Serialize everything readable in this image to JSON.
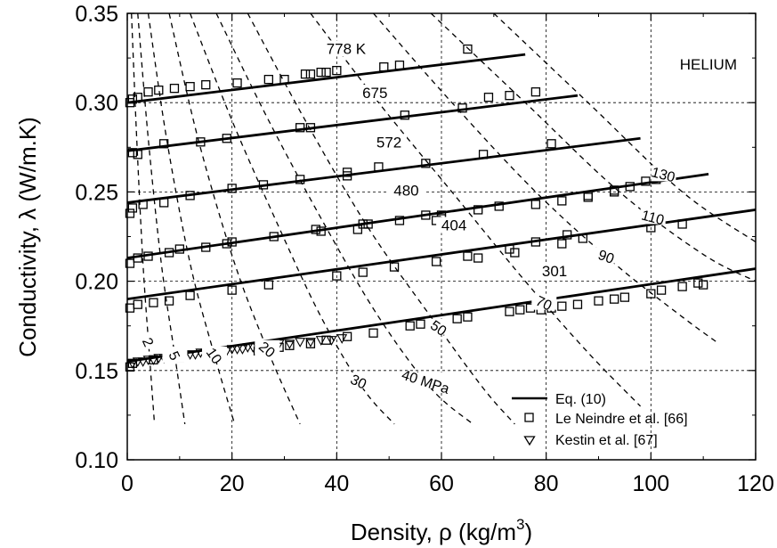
{
  "chart_data": {
    "type": "line",
    "title": "",
    "panel_label": "HELIUM",
    "xlabel": "Density, ρ  (kg/m",
    "xlabel_sup": "3",
    "xlabel_tail": ")",
    "ylabel": "Conductivity, λ  (W/m.K)",
    "xlim": [
      0,
      120
    ],
    "ylim": [
      0.1,
      0.35
    ],
    "xticks": [
      0,
      20,
      40,
      60,
      80,
      100,
      120
    ],
    "xtick_labels": [
      "0",
      "20",
      "40",
      "60",
      "80",
      "100",
      "120"
    ],
    "yticks": [
      0.1,
      0.15,
      0.2,
      0.25,
      0.3,
      0.35
    ],
    "ytick_labels": [
      "0.10",
      "0.15",
      "0.20",
      "0.25",
      "0.30",
      "0.35"
    ],
    "grid": true,
    "legend": {
      "position": "bottom-right",
      "entries": [
        {
          "label": "Eq. (10)",
          "marker": "line"
        },
        {
          "label": "Le Neindre et al. [66]",
          "marker": "square"
        },
        {
          "label": "Kestin et al. [67]",
          "marker": "triangle-down"
        }
      ]
    },
    "isotherms": [
      {
        "label": "778 K",
        "x": [
          0,
          76
        ],
        "y": [
          0.3,
          0.327
        ]
      },
      {
        "label": "675",
        "x": [
          0,
          86
        ],
        "y": [
          0.273,
          0.304
        ]
      },
      {
        "label": "572",
        "x": [
          0,
          98
        ],
        "y": [
          0.244,
          0.28
        ]
      },
      {
        "label": "480",
        "x": [
          0,
          111
        ],
        "y": [
          0.213,
          0.26
        ]
      },
      {
        "label": "404",
        "x": [
          0,
          120
        ],
        "y": [
          0.19,
          0.24
        ]
      },
      {
        "label": "301",
        "x": [
          0,
          120
        ],
        "y": [
          0.155,
          0.207
        ]
      }
    ],
    "isobars": [
      {
        "label": "2",
        "x": [
          0.8,
          1.8,
          3.0,
          4.2,
          5.2
        ],
        "y": [
          0.35,
          0.28,
          0.21,
          0.16,
          0.12
        ]
      },
      {
        "label": "5",
        "x": [
          2.0,
          4.0,
          6.5,
          9.0,
          11.0
        ],
        "y": [
          0.35,
          0.28,
          0.21,
          0.16,
          0.12
        ]
      },
      {
        "label": "10",
        "x": [
          4.0,
          7.5,
          12.0,
          16.5,
          20.5
        ],
        "y": [
          0.35,
          0.28,
          0.21,
          0.16,
          0.12
        ]
      },
      {
        "label": "20",
        "x": [
          8.0,
          13.5,
          20.5,
          27.0,
          33.0
        ],
        "y": [
          0.35,
          0.28,
          0.21,
          0.16,
          0.12
        ]
      },
      {
        "label": "30",
        "x": [
          12.0,
          20.0,
          29.0,
          37.0,
          45.0,
          51.0
        ],
        "y": [
          0.35,
          0.29,
          0.23,
          0.18,
          0.14,
          0.12
        ]
      },
      {
        "label": "40 MPa",
        "x": [
          17.0,
          27.0,
          38.0,
          48.0,
          58.0,
          66.0
        ],
        "y": [
          0.35,
          0.29,
          0.23,
          0.18,
          0.14,
          0.12
        ]
      },
      {
        "label": "50",
        "x": [
          23.0,
          34.0,
          46.0,
          58.0,
          68.0,
          74.0
        ],
        "y": [
          0.35,
          0.29,
          0.23,
          0.18,
          0.14,
          0.12
        ]
      },
      {
        "label": "70",
        "x": [
          35.0,
          48.0,
          62.0,
          76.0,
          88.0,
          98.0
        ],
        "y": [
          0.35,
          0.3,
          0.25,
          0.2,
          0.16,
          0.13
        ]
      },
      {
        "label": "90",
        "x": [
          47.0,
          62.0,
          78.0,
          93.0,
          106.0,
          113.0
        ],
        "y": [
          0.35,
          0.3,
          0.25,
          0.21,
          0.18,
          0.165
        ]
      },
      {
        "label": "110",
        "x": [
          58.0,
          76.0,
          94.0,
          110.0,
          120.0
        ],
        "y": [
          0.35,
          0.3,
          0.25,
          0.215,
          0.2
        ]
      },
      {
        "label": "130",
        "x": [
          70.0,
          88.0,
          106.0,
          120.0
        ],
        "y": [
          0.35,
          0.3,
          0.25,
          0.222
        ]
      }
    ],
    "le_neindre": {
      "x": [
        0.5,
        1,
        2,
        4,
        6,
        9,
        12,
        15,
        21,
        27,
        30,
        34,
        35,
        37,
        38,
        40,
        49,
        52,
        65,
        1,
        2,
        7,
        14,
        19,
        33,
        35,
        42,
        48,
        53,
        57,
        64,
        68,
        69,
        73,
        78,
        81,
        88,
        93,
        96,
        99,
        0.5,
        1,
        3,
        7,
        12,
        20,
        26,
        33,
        36,
        42,
        45,
        52,
        57,
        60,
        67,
        71,
        78,
        83,
        88,
        93,
        101,
        0.5,
        2,
        4,
        8,
        10,
        15,
        19,
        20,
        28,
        37,
        44,
        46,
        59,
        60,
        67,
        74,
        83,
        87,
        0.5,
        2,
        5,
        8,
        12,
        20,
        27,
        40,
        45,
        51,
        59,
        65,
        73,
        78,
        84,
        100,
        106,
        110,
        0.5,
        1,
        5,
        10,
        18,
        25,
        29,
        31,
        35,
        38,
        42,
        47,
        54,
        56,
        63,
        65,
        73,
        75,
        77,
        79,
        81,
        83,
        86,
        90,
        93,
        95,
        100,
        102,
        106,
        109
      ],
      "y": [
        0.3,
        0.302,
        0.303,
        0.306,
        0.307,
        0.308,
        0.309,
        0.31,
        0.311,
        0.313,
        0.313,
        0.316,
        0.316,
        0.317,
        0.317,
        0.318,
        0.32,
        0.321,
        0.33,
        0.272,
        0.271,
        0.277,
        0.278,
        0.28,
        0.286,
        0.286,
        0.261,
        0.264,
        0.293,
        0.266,
        0.297,
        0.271,
        0.303,
        0.304,
        0.306,
        0.277,
        0.248,
        0.251,
        0.253,
        0.256,
        0.238,
        0.241,
        0.243,
        0.244,
        0.248,
        0.252,
        0.254,
        0.257,
        0.229,
        0.259,
        0.232,
        0.234,
        0.237,
        0.237,
        0.24,
        0.242,
        0.243,
        0.245,
        0.247,
        0.25,
        0.257,
        0.21,
        0.213,
        0.214,
        0.216,
        0.218,
        0.219,
        0.221,
        0.222,
        0.225,
        0.228,
        0.229,
        0.232,
        0.234,
        0.235,
        0.213,
        0.216,
        0.221,
        0.224,
        0.185,
        0.187,
        0.188,
        0.189,
        0.192,
        0.195,
        0.198,
        0.203,
        0.205,
        0.208,
        0.211,
        0.214,
        0.218,
        0.222,
        0.226,
        0.23,
        0.232,
        0.198,
        0.152,
        0.154,
        0.156,
        0.157,
        0.159,
        0.161,
        0.163,
        0.164,
        0.165,
        0.167,
        0.169,
        0.171,
        0.175,
        0.176,
        0.179,
        0.18,
        0.183,
        0.184,
        0.185,
        0.184,
        0.185,
        0.186,
        0.187,
        0.189,
        0.19,
        0.191,
        0.193,
        0.195,
        0.197,
        0.199
      ]
    },
    "kestin": {
      "x": [
        1,
        2,
        3,
        4,
        5,
        6,
        7,
        8,
        9,
        10,
        11,
        12,
        13,
        14,
        15,
        16,
        17,
        18,
        19,
        20,
        21,
        22,
        23,
        24,
        25,
        27,
        29,
        31,
        33,
        35,
        37,
        39,
        41
      ],
      "y": [
        0.154,
        0.155,
        0.155,
        0.156,
        0.156,
        0.157,
        0.157,
        0.158,
        0.158,
        0.158,
        0.159,
        0.159,
        0.159,
        0.16,
        0.16,
        0.16,
        0.161,
        0.161,
        0.161,
        0.162,
        0.162,
        0.162,
        0.163,
        0.163,
        0.163,
        0.164,
        0.165,
        0.165,
        0.166,
        0.166,
        0.167,
        0.167,
        0.168
      ]
    }
  }
}
